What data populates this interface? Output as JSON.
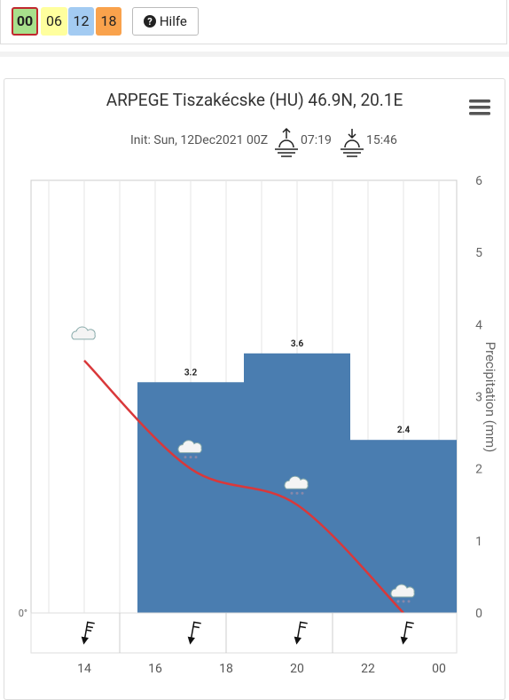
{
  "toolbar": {
    "runs": [
      "00",
      "06",
      "12",
      "18"
    ],
    "help": "Hilfe"
  },
  "chart_data": {
    "type": "bar-line",
    "title": "ARPEGE Tiszakécske (HU) 46.9N, 20.1E",
    "subtitle": "Init: Sun, 12Dec2021 00Z",
    "sunrise": "07:19",
    "sunset": "15:46",
    "y2label": "Precipitation (mm)",
    "xlim": [
      12.5,
      24.5
    ],
    "xticks": [
      14,
      16,
      18,
      20,
      22,
      {
        "value": 24,
        "label": "00"
      }
    ],
    "xminorticks": [
      13,
      15,
      17,
      19,
      21,
      23
    ],
    "ylim": [
      0,
      6
    ],
    "yticks": [
      {
        "value": 0,
        "label": "0°"
      }
    ],
    "y2lim": [
      0,
      6
    ],
    "y2ticks": [
      0,
      1,
      2,
      3,
      4,
      5,
      6
    ],
    "series": [
      {
        "name": "Precipitation",
        "axis": "y2",
        "color": "#4a7db0",
        "bins": [
          15.5,
          18.5,
          21.5,
          24.5
        ],
        "values": [
          3.2,
          3.6,
          2.4
        ]
      },
      {
        "name": "Temperature",
        "axis": "y",
        "color": "#d9383a",
        "x": [
          14,
          17,
          20,
          23
        ],
        "values": [
          3.5,
          2.0,
          1.5,
          0
        ]
      }
    ]
  }
}
